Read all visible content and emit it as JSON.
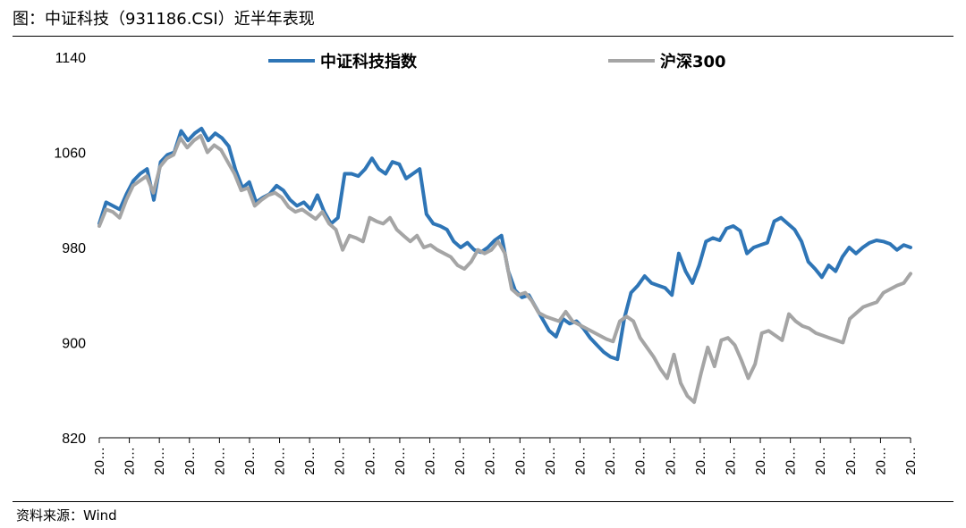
{
  "header": {
    "title": "图：中证科技（931186.CSI）近半年表现"
  },
  "footer": {
    "source": "资料来源：Wind"
  },
  "chart_data": {
    "type": "line",
    "ylim": [
      820,
      1140
    ],
    "yticks": [
      820,
      900,
      980,
      1060,
      1140
    ],
    "xtick_label": "20…",
    "xtick_count": 28,
    "legend_placement": "top",
    "grid": false,
    "series": [
      {
        "name": "中证科技指数",
        "color": "#2E75B6",
        "values": [
          1000,
          1018,
          1015,
          1012,
          1025,
          1036,
          1042,
          1046,
          1020,
          1052,
          1058,
          1060,
          1078,
          1070,
          1076,
          1080,
          1070,
          1076,
          1072,
          1065,
          1045,
          1030,
          1035,
          1018,
          1022,
          1025,
          1032,
          1028,
          1020,
          1015,
          1018,
          1012,
          1024,
          1010,
          1000,
          1005,
          1042,
          1042,
          1040,
          1046,
          1055,
          1046,
          1042,
          1052,
          1050,
          1038,
          1042,
          1046,
          1008,
          1000,
          998,
          995,
          985,
          980,
          984,
          978,
          976,
          980,
          986,
          990,
          960,
          944,
          938,
          940,
          930,
          920,
          910,
          905,
          920,
          916,
          918,
          912,
          904,
          898,
          892,
          888,
          886,
          920,
          942,
          948,
          956,
          950,
          948,
          946,
          940,
          975,
          960,
          950,
          965,
          985,
          988,
          986,
          996,
          998,
          994,
          975,
          980,
          982,
          984,
          1002,
          1005,
          1000,
          995,
          985,
          968,
          962,
          955,
          965,
          960,
          972,
          980,
          975,
          980,
          984,
          986,
          985,
          983,
          978,
          982,
          980
        ]
      },
      {
        "name": "沪深300",
        "color": "#A5A5A5",
        "values": [
          998,
          1012,
          1010,
          1005,
          1020,
          1032,
          1036,
          1040,
          1026,
          1048,
          1055,
          1058,
          1072,
          1064,
          1070,
          1074,
          1060,
          1066,
          1062,
          1052,
          1042,
          1028,
          1030,
          1015,
          1020,
          1024,
          1026,
          1022,
          1014,
          1010,
          1012,
          1008,
          1004,
          1010,
          1000,
          995,
          978,
          990,
          988,
          985,
          1005,
          1002,
          1000,
          1005,
          995,
          990,
          985,
          990,
          980,
          982,
          978,
          975,
          972,
          965,
          962,
          968,
          978,
          975,
          978,
          985,
          975,
          945,
          940,
          942,
          935,
          925,
          922,
          920,
          918,
          926,
          918,
          915,
          912,
          909,
          906,
          903,
          901,
          918,
          922,
          918,
          904,
          896,
          888,
          878,
          870,
          890,
          866,
          855,
          850,
          874,
          896,
          880,
          902,
          904,
          898,
          885,
          870,
          882,
          908,
          910,
          906,
          902,
          924,
          918,
          914,
          912,
          908,
          906,
          904,
          902,
          900,
          920,
          925,
          930,
          932,
          934,
          942,
          945,
          948,
          950,
          958
        ]
      }
    ]
  }
}
